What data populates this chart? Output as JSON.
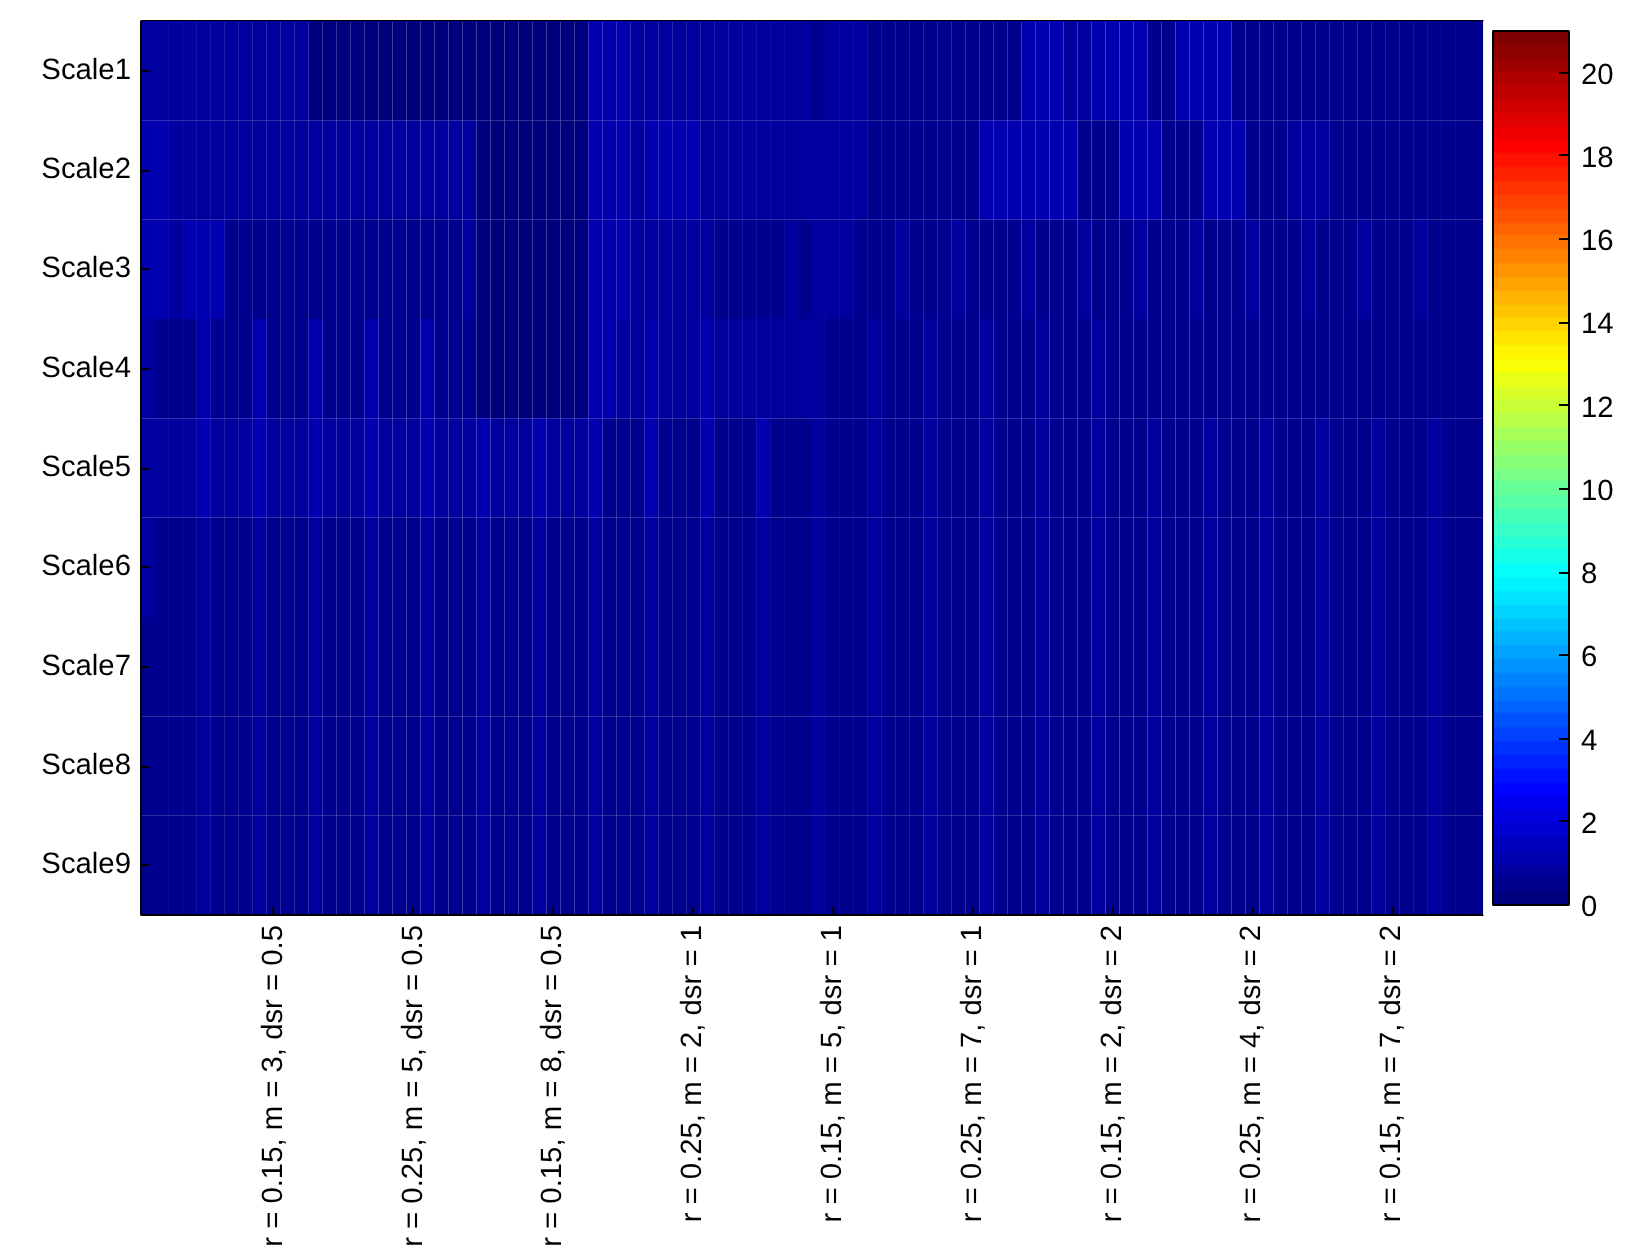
{
  "chart_data": {
    "type": "heatmap",
    "categories": [
      null,
      null,
      null,
      null,
      null,
      null,
      null,
      null,
      null,
      "r = 0.15, m = 3, dsr = 0.5",
      null,
      null,
      null,
      null,
      null,
      null,
      null,
      null,
      null,
      "r = 0.25, m = 5, dsr = 0.5",
      null,
      null,
      null,
      null,
      null,
      null,
      null,
      null,
      null,
      "r = 0.15, m = 8, dsr = 0.5",
      null,
      null,
      null,
      null,
      null,
      null,
      null,
      null,
      null,
      "r = 0.25, m = 2, dsr = 1",
      null,
      null,
      null,
      null,
      null,
      null,
      null,
      null,
      null,
      "r = 0.15, m = 5, dsr = 1",
      null,
      null,
      null,
      null,
      null,
      null,
      null,
      null,
      null,
      "r = 0.25, m = 7, dsr = 1",
      null,
      null,
      null,
      null,
      null,
      null,
      null,
      null,
      null,
      "r = 0.15, m = 2, dsr = 2",
      null,
      null,
      null,
      null,
      null,
      null,
      null,
      null,
      null,
      "r = 0.25, m = 4, dsr = 2",
      null,
      null,
      null,
      null,
      null,
      null,
      null,
      null,
      null,
      "r = 0.15, m = 7, dsr = 2",
      null,
      null,
      null,
      null,
      null,
      null
    ],
    "y_categories": [
      "Scale1",
      "Scale2",
      "Scale3",
      "Scale4",
      "Scale5",
      "Scale6",
      "Scale7",
      "Scale8",
      "Scale9"
    ],
    "cells": [
      [
        0.8,
        0.8,
        0.8,
        0.8,
        0.8,
        0.8,
        0.8,
        0.8,
        0.8,
        0.8,
        0.8,
        0.8,
        0.3,
        0.3,
        0.3,
        0.3,
        0.3,
        0.3,
        0.3,
        0.3,
        0.3,
        0.3,
        0.3,
        0.3,
        0.3,
        0.3,
        0.3,
        0.3,
        0.3,
        0.3,
        0.3,
        0.3,
        1.1,
        1.1,
        1.1,
        0.7,
        0.7,
        0.7,
        0.7,
        0.7,
        0.7,
        0.7,
        0.7,
        0.7,
        0.7,
        0.7,
        0.7,
        0.7,
        0.6,
        0.9,
        0.9,
        0.9,
        0.5,
        0.5,
        0.5,
        0.5,
        0.5,
        0.5,
        0.5,
        0.5,
        0.5,
        0.5,
        0.5,
        1.1,
        1.1,
        1.1,
        0.8,
        0.8,
        1.0,
        1.0,
        1.0,
        1.0,
        0.6,
        0.6,
        1.0,
        1.0,
        1.0,
        1.0,
        0.6,
        0.6,
        0.6,
        0.6,
        0.6,
        0.6,
        0.6,
        0.6,
        0.6,
        0.6,
        0.6,
        0.6,
        0.6,
        0.6,
        0.6,
        0.6,
        0.6,
        0.6
      ],
      [
        1.0,
        1.0,
        0.8,
        0.8,
        0.8,
        0.8,
        0.8,
        0.8,
        0.8,
        0.8,
        0.8,
        0.8,
        0.7,
        0.7,
        0.7,
        0.7,
        0.7,
        0.7,
        0.7,
        0.7,
        0.7,
        0.7,
        0.7,
        0.7,
        0.3,
        0.3,
        0.3,
        0.3,
        0.3,
        0.3,
        0.3,
        0.3,
        1.2,
        1.2,
        1.2,
        0.7,
        1.0,
        1.0,
        1.0,
        1.0,
        0.7,
        0.7,
        0.7,
        0.7,
        0.7,
        0.7,
        0.7,
        0.7,
        0.8,
        0.8,
        0.8,
        0.8,
        0.5,
        0.5,
        0.5,
        0.5,
        0.5,
        0.5,
        0.5,
        0.5,
        1.0,
        1.0,
        1.0,
        1.1,
        1.1,
        1.1,
        1.1,
        0.6,
        0.6,
        0.6,
        1.0,
        1.0,
        1.0,
        0.6,
        0.6,
        0.6,
        1.0,
        1.0,
        1.0,
        0.6,
        0.6,
        0.6,
        0.9,
        0.9,
        0.9,
        0.6,
        0.6,
        0.6,
        0.6,
        0.6,
        0.6,
        0.6,
        0.6,
        0.6,
        0.6,
        0.6
      ],
      [
        1.3,
        1.3,
        0.8,
        1.0,
        1.0,
        1.0,
        0.6,
        0.6,
        0.6,
        0.6,
        0.6,
        0.6,
        0.6,
        0.6,
        0.6,
        0.6,
        0.6,
        0.6,
        0.6,
        0.6,
        0.6,
        0.6,
        0.6,
        0.9,
        0.3,
        0.3,
        0.3,
        0.3,
        0.3,
        0.3,
        0.3,
        0.3,
        1.1,
        1.1,
        1.1,
        0.8,
        0.8,
        0.8,
        0.8,
        0.8,
        0.8,
        0.6,
        0.6,
        0.6,
        0.6,
        0.6,
        0.8,
        0.6,
        0.8,
        0.8,
        0.8,
        0.5,
        0.5,
        0.5,
        0.9,
        0.5,
        0.5,
        0.5,
        0.9,
        0.5,
        0.5,
        0.5,
        0.5,
        0.9,
        0.5,
        0.5,
        0.5,
        0.9,
        0.5,
        0.5,
        0.5,
        0.9,
        0.5,
        0.5,
        0.5,
        0.9,
        0.5,
        0.5,
        0.5,
        0.9,
        0.5,
        0.5,
        0.5,
        0.9,
        0.5,
        0.5,
        0.5,
        0.9,
        0.5,
        0.5,
        0.5,
        0.9,
        0.5,
        0.5,
        0.5,
        0.5
      ],
      [
        0.9,
        0.6,
        0.6,
        0.6,
        1.0,
        0.6,
        0.6,
        0.6,
        1.0,
        0.6,
        0.6,
        0.6,
        1.0,
        0.6,
        0.6,
        0.6,
        1.0,
        0.6,
        0.6,
        0.6,
        1.0,
        0.6,
        0.6,
        0.6,
        0.3,
        0.3,
        0.3,
        0.3,
        0.3,
        0.3,
        0.3,
        0.3,
        1.0,
        1.0,
        0.7,
        0.7,
        1.0,
        0.7,
        0.7,
        0.7,
        1.0,
        0.7,
        0.7,
        0.7,
        0.9,
        0.7,
        0.7,
        0.7,
        0.9,
        0.5,
        0.5,
        0.5,
        0.9,
        0.5,
        0.5,
        0.5,
        0.9,
        0.5,
        0.5,
        0.5,
        0.9,
        0.5,
        0.5,
        0.5,
        0.9,
        0.5,
        0.5,
        0.5,
        0.9,
        0.5,
        0.5,
        0.5,
        0.4,
        0.4,
        0.4,
        0.4,
        0.4,
        0.4,
        0.4,
        0.4,
        0.4,
        0.4,
        0.4,
        0.4,
        0.4,
        0.4,
        0.4,
        0.4,
        0.4,
        0.4,
        0.4,
        0.4,
        0.4,
        0.4,
        0.4,
        0.4
      ],
      [
        0.9,
        0.7,
        0.7,
        0.7,
        1.0,
        0.7,
        0.7,
        0.7,
        1.0,
        0.7,
        0.7,
        0.7,
        1.0,
        0.7,
        0.7,
        0.7,
        1.0,
        0.7,
        0.7,
        0.7,
        1.0,
        0.7,
        0.7,
        0.7,
        1.0,
        0.7,
        0.7,
        0.7,
        1.0,
        0.7,
        0.7,
        0.7,
        1.0,
        0.6,
        0.6,
        0.6,
        1.0,
        0.6,
        0.6,
        0.6,
        1.0,
        0.6,
        0.6,
        0.6,
        1.0,
        0.6,
        0.6,
        0.6,
        0.8,
        0.5,
        0.5,
        0.5,
        0.8,
        0.5,
        0.5,
        0.5,
        0.8,
        0.5,
        0.5,
        0.5,
        0.8,
        0.5,
        0.5,
        0.5,
        0.8,
        0.5,
        0.5,
        0.5,
        0.8,
        0.5,
        0.5,
        0.5,
        0.8,
        0.5,
        0.5,
        0.5,
        0.8,
        0.5,
        0.5,
        0.5,
        0.8,
        0.5,
        0.5,
        0.5,
        0.8,
        0.5,
        0.5,
        0.5,
        0.8,
        0.5,
        0.5,
        0.5,
        0.8,
        0.5,
        0.5,
        0.5
      ],
      [
        0.9,
        0.5,
        0.5,
        0.5,
        0.9,
        0.5,
        0.5,
        0.5,
        0.9,
        0.5,
        0.5,
        0.5,
        0.9,
        0.5,
        0.5,
        0.5,
        0.9,
        0.5,
        0.5,
        0.5,
        0.9,
        0.5,
        0.5,
        0.5,
        0.9,
        0.5,
        0.5,
        0.5,
        0.9,
        0.5,
        0.5,
        0.5,
        0.9,
        0.5,
        0.5,
        0.5,
        0.9,
        0.5,
        0.5,
        0.5,
        0.9,
        0.5,
        0.5,
        0.5,
        0.9,
        0.5,
        0.5,
        0.5,
        0.7,
        0.4,
        0.4,
        0.4,
        0.7,
        0.4,
        0.4,
        0.4,
        0.7,
        0.4,
        0.4,
        0.4,
        0.7,
        0.4,
        0.4,
        0.4,
        0.7,
        0.4,
        0.4,
        0.4,
        0.7,
        0.4,
        0.4,
        0.4,
        0.7,
        0.4,
        0.4,
        0.4,
        0.7,
        0.4,
        0.4,
        0.4,
        0.7,
        0.4,
        0.4,
        0.4,
        0.7,
        0.4,
        0.4,
        0.4,
        0.7,
        0.4,
        0.4,
        0.4,
        0.7,
        0.4,
        0.4,
        0.4
      ],
      [
        0.5,
        0.4,
        0.4,
        0.4,
        0.8,
        0.4,
        0.4,
        0.4,
        0.8,
        0.4,
        0.4,
        0.4,
        0.8,
        0.4,
        0.4,
        0.4,
        0.8,
        0.4,
        0.4,
        0.4,
        0.8,
        0.4,
        0.4,
        0.4,
        0.8,
        0.4,
        0.4,
        0.4,
        0.8,
        0.4,
        0.4,
        0.4,
        0.8,
        0.4,
        0.4,
        0.4,
        0.8,
        0.4,
        0.4,
        0.4,
        0.8,
        0.4,
        0.4,
        0.4,
        0.8,
        0.4,
        0.4,
        0.4,
        0.8,
        0.4,
        0.4,
        0.4,
        0.8,
        0.4,
        0.4,
        0.4,
        0.8,
        0.4,
        0.4,
        0.4,
        0.8,
        0.4,
        0.4,
        0.4,
        0.8,
        0.4,
        0.4,
        0.4,
        0.8,
        0.4,
        0.4,
        0.4,
        0.8,
        0.4,
        0.4,
        0.4,
        0.8,
        0.4,
        0.4,
        0.4,
        0.8,
        0.4,
        0.4,
        0.4,
        0.8,
        0.4,
        0.4,
        0.4,
        0.8,
        0.4,
        0.4,
        0.4,
        0.8,
        0.4,
        0.4,
        0.4
      ],
      [
        0.5,
        0.4,
        0.4,
        0.4,
        0.8,
        0.4,
        0.4,
        0.4,
        0.8,
        0.4,
        0.4,
        0.4,
        0.8,
        0.4,
        0.4,
        0.4,
        0.8,
        0.4,
        0.4,
        0.4,
        0.8,
        0.4,
        0.4,
        0.4,
        0.8,
        0.4,
        0.4,
        0.4,
        0.8,
        0.4,
        0.4,
        0.4,
        0.8,
        0.4,
        0.4,
        0.4,
        0.8,
        0.4,
        0.4,
        0.4,
        0.8,
        0.4,
        0.4,
        0.4,
        0.8,
        0.4,
        0.4,
        0.4,
        0.8,
        0.4,
        0.4,
        0.4,
        0.8,
        0.4,
        0.4,
        0.4,
        0.8,
        0.4,
        0.4,
        0.4,
        0.8,
        0.4,
        0.4,
        0.4,
        0.8,
        0.4,
        0.4,
        0.4,
        0.8,
        0.4,
        0.4,
        0.4,
        0.8,
        0.4,
        0.4,
        0.4,
        0.8,
        0.4,
        0.4,
        0.4,
        0.8,
        0.4,
        0.4,
        0.4,
        0.8,
        0.4,
        0.4,
        0.4,
        0.8,
        0.4,
        0.4,
        0.4,
        0.8,
        0.4,
        0.4,
        0.4
      ],
      [
        0.5,
        0.4,
        0.4,
        0.4,
        0.8,
        0.4,
        0.4,
        0.4,
        0.8,
        0.4,
        0.4,
        0.4,
        0.8,
        0.4,
        0.4,
        0.4,
        0.8,
        0.4,
        0.4,
        0.4,
        0.8,
        0.4,
        0.4,
        0.4,
        0.8,
        0.4,
        0.4,
        0.4,
        0.8,
        0.4,
        0.4,
        0.4,
        0.8,
        0.4,
        0.4,
        0.4,
        0.8,
        0.4,
        0.4,
        0.4,
        0.8,
        0.4,
        0.4,
        0.4,
        0.8,
        0.4,
        0.4,
        0.4,
        0.8,
        0.4,
        0.4,
        0.4,
        0.8,
        0.4,
        0.4,
        0.4,
        0.8,
        0.4,
        0.4,
        0.4,
        0.8,
        0.4,
        0.4,
        0.4,
        0.7,
        0.4,
        0.4,
        0.4,
        0.7,
        0.4,
        0.4,
        0.4,
        0.7,
        0.4,
        0.4,
        0.4,
        0.7,
        0.4,
        0.4,
        0.4,
        0.7,
        0.4,
        0.4,
        0.4,
        0.7,
        0.4,
        0.4,
        0.4,
        0.7,
        0.4,
        0.4,
        0.4,
        0.7,
        0.4,
        0.4,
        0.4
      ]
    ],
    "clim": [
      0,
      21
    ],
    "cticks": [
      0,
      2,
      4,
      6,
      8,
      10,
      12,
      14,
      16,
      18,
      20
    ]
  }
}
